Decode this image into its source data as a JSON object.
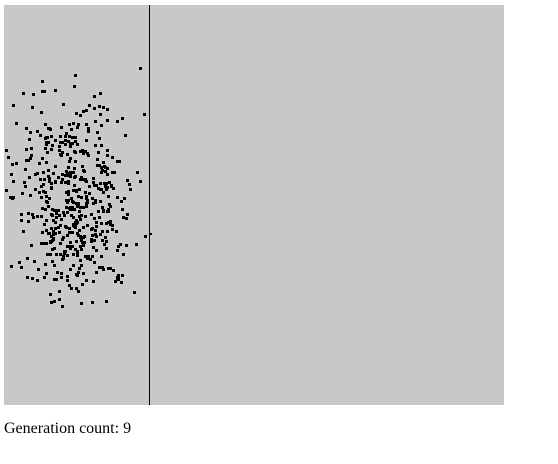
{
  "simulation": {
    "background_color": "#c8c8c8",
    "cell_color": "#000000",
    "divider_color": "#000000"
  },
  "status": {
    "label": "Generation count:",
    "value": "9"
  }
}
